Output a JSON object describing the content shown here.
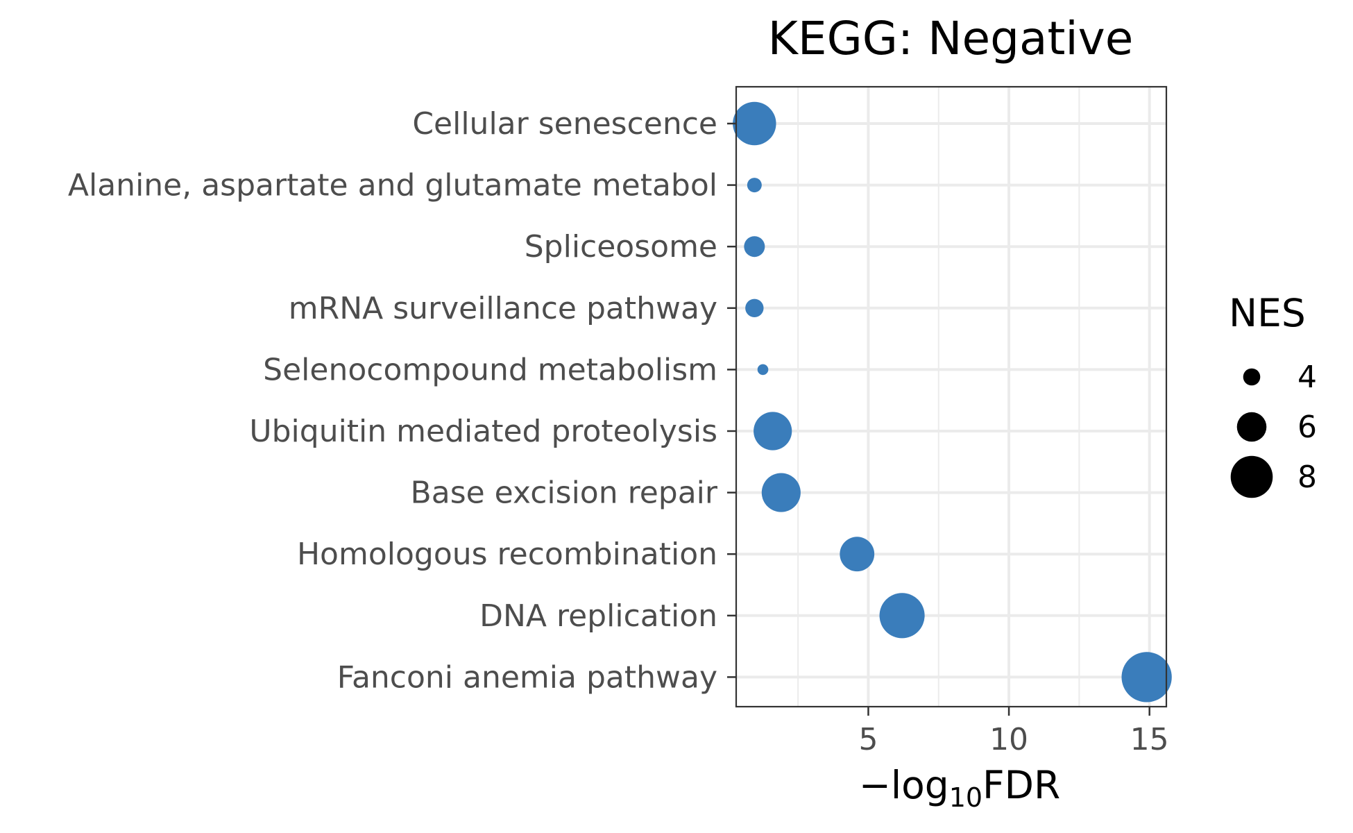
{
  "chart_data": {
    "type": "scatter",
    "title": "KEGG: Negative",
    "xlabel": {
      "prefix": "−log",
      "subscript": "10",
      "suffix": "FDR"
    },
    "ylabel": "",
    "xlim": [
      0.3,
      15.6
    ],
    "x_ticks": [
      5,
      10,
      15
    ],
    "x_minor_ticks": [
      2.5,
      7.5,
      12.5
    ],
    "grid": true,
    "point_color": "#3A7DBB",
    "categories": [
      "Cellular senescence",
      "Alanine, aspartate and glutamate metabol",
      "Spliceosome",
      "mRNA surveillance pathway",
      "Selenocompound metabolism",
      "Ubiquitin mediated proteolysis",
      "Base excision repair",
      "Homologous recombination",
      "DNA replication",
      "Fanconi anemia pathway"
    ],
    "x": [
      0.95,
      0.95,
      0.95,
      0.95,
      1.25,
      1.6,
      1.9,
      4.6,
      6.2,
      14.9
    ],
    "size_values": [
      8.2,
      3.6,
      4.6,
      4.2,
      3.0,
      7.4,
      7.5,
      6.8,
      8.5,
      9.3
    ],
    "legend": {
      "title": "NES",
      "position": "right",
      "entries": [
        {
          "label": "4",
          "value": 4
        },
        {
          "label": "6",
          "value": 6
        },
        {
          "label": "8",
          "value": 8
        }
      ]
    }
  }
}
